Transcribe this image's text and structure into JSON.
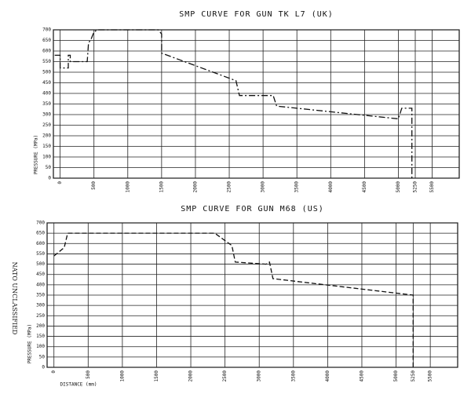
{
  "marking": "NATO UNCLASSIFIED",
  "chart_data": [
    {
      "type": "line",
      "title": "SMP CURVE FOR GUN TK L7 (UK)",
      "ylabel": "PRESSURE (MPa)",
      "x": [
        -80,
        0,
        0,
        120,
        120,
        150,
        150,
        400,
        420,
        450,
        500,
        550,
        1450,
        1500,
        1500,
        2600,
        2650,
        3150,
        3200,
        5000,
        5050,
        5200,
        5200
      ],
      "series": [
        {
          "color": "#111111",
          "line_style": "dashdot",
          "values": [
            580,
            580,
            520,
            520,
            580,
            580,
            550,
            550,
            640,
            650,
            690,
            700,
            700,
            680,
            590,
            460,
            390,
            390,
            340,
            280,
            330,
            330,
            0
          ]
        }
      ],
      "xlim": [
        -100,
        5900
      ],
      "ylim": [
        0,
        700
      ],
      "xticks": [
        0,
        500,
        1000,
        1500,
        2000,
        2500,
        3000,
        3500,
        4000,
        4500,
        5000,
        5250,
        5500
      ],
      "yticks": [
        0,
        50,
        100,
        150,
        200,
        250,
        300,
        350,
        400,
        450,
        500,
        550,
        600,
        650,
        700
      ],
      "grid": true
    },
    {
      "type": "line",
      "title": "SMP CURVE FOR GUN M68 (US)",
      "ylabel": "PRESSURE (MPa)",
      "xlabel": "DISTANCE (mm)",
      "x": [
        0,
        150,
        200,
        2350,
        2600,
        2650,
        3100,
        3150,
        3200,
        5250,
        5250
      ],
      "series": [
        {
          "color": "#111111",
          "line_style": "dashed",
          "values": [
            540,
            580,
            650,
            650,
            590,
            510,
            500,
            510,
            430,
            350,
            0
          ]
        }
      ],
      "xlim": [
        -100,
        5900
      ],
      "ylim": [
        0,
        700
      ],
      "xticks": [
        0,
        500,
        1000,
        1500,
        2000,
        2500,
        3000,
        3500,
        4000,
        4500,
        5000,
        5250,
        5500
      ],
      "yticks": [
        0,
        50,
        100,
        150,
        200,
        250,
        300,
        350,
        400,
        450,
        500,
        550,
        600,
        650,
        700
      ],
      "grid": true
    }
  ]
}
